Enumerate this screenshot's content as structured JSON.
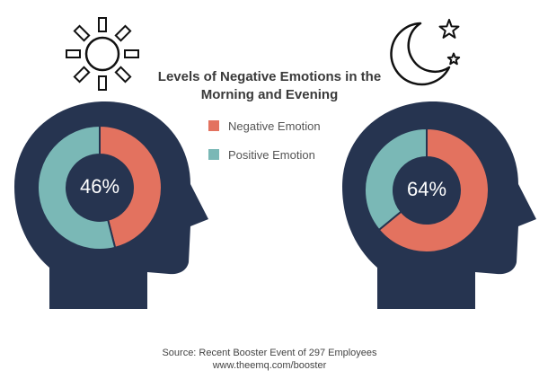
{
  "title_line1": "Levels of Negative Emotions in the",
  "title_line2": "Morning and Evening",
  "colors": {
    "negative": "#e3725f",
    "positive": "#7ab8b6",
    "head": "#263450",
    "icon_stroke": "#111111",
    "background": "#ffffff"
  },
  "icons": {
    "morning": "sun-icon",
    "evening": "moon-stars-icon"
  },
  "chart_data": {
    "type": "pie",
    "title": "Levels of Negative Emotions in the Morning and Evening",
    "legend": [
      {
        "name": "Negative Emotion",
        "color": "#e3725f"
      },
      {
        "name": "Positive Emotion",
        "color": "#7ab8b6"
      }
    ],
    "legend_position": "top-center",
    "charts": [
      {
        "center_label": "46%",
        "values": [
          {
            "name": "Negative Emotion",
            "value": 46
          },
          {
            "name": "Positive Emotion",
            "value": 54
          }
        ]
      },
      {
        "center_label": "64%",
        "values": [
          {
            "name": "Negative Emotion",
            "value": 64
          },
          {
            "name": "Positive Emotion",
            "value": 36
          }
        ]
      }
    ]
  },
  "source": {
    "line1": "Source:  Recent Booster Event of 297 Employees",
    "line2": "www.theemq.com/booster"
  }
}
